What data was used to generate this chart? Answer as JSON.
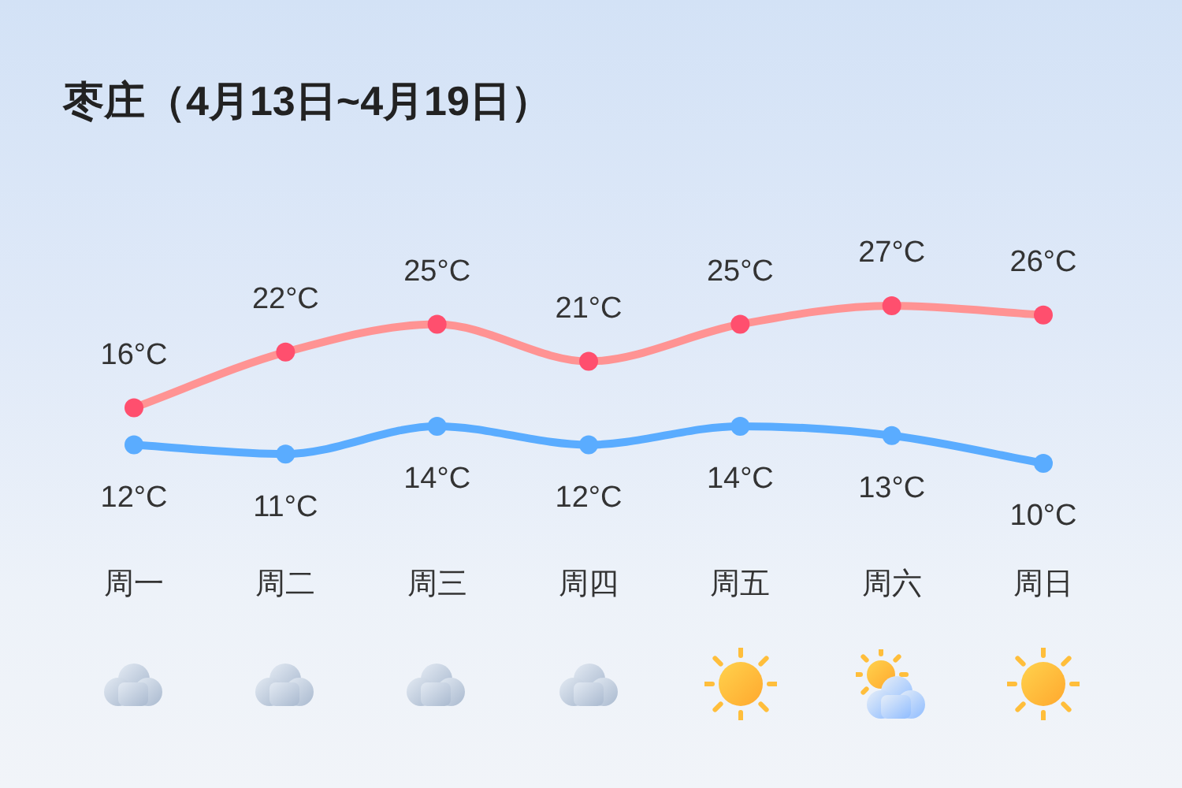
{
  "chart_data": {
    "type": "line",
    "title": "枣庄（4月13日~4月19日）",
    "categories": [
      "周一",
      "周二",
      "周三",
      "周四",
      "周五",
      "周六",
      "周日"
    ],
    "series": [
      {
        "color": "#ff9393",
        "colors": [
          "#ff4f6e",
          "#ff4f6e",
          "#ff4f6e",
          "#ff4f6e",
          "#ff4f6e",
          "#ff4f6e",
          "#ff4f6e"
        ],
        "values": [
          16,
          22,
          25,
          21,
          25,
          27,
          26
        ],
        "value_labels": [
          "16°C",
          "22°C",
          "25°C",
          "21°C",
          "25°C",
          "27°C",
          "26°C"
        ]
      },
      {
        "color": "#5aacff",
        "values": [
          12,
          11,
          14,
          12,
          14,
          13,
          10
        ],
        "value_labels": [
          "12°C",
          "11°C",
          "14°C",
          "12°C",
          "14°C",
          "13°C",
          "10°C"
        ]
      }
    ],
    "marker": "circle",
    "line_style": "solid",
    "tick_labels": "x"
  }
}
